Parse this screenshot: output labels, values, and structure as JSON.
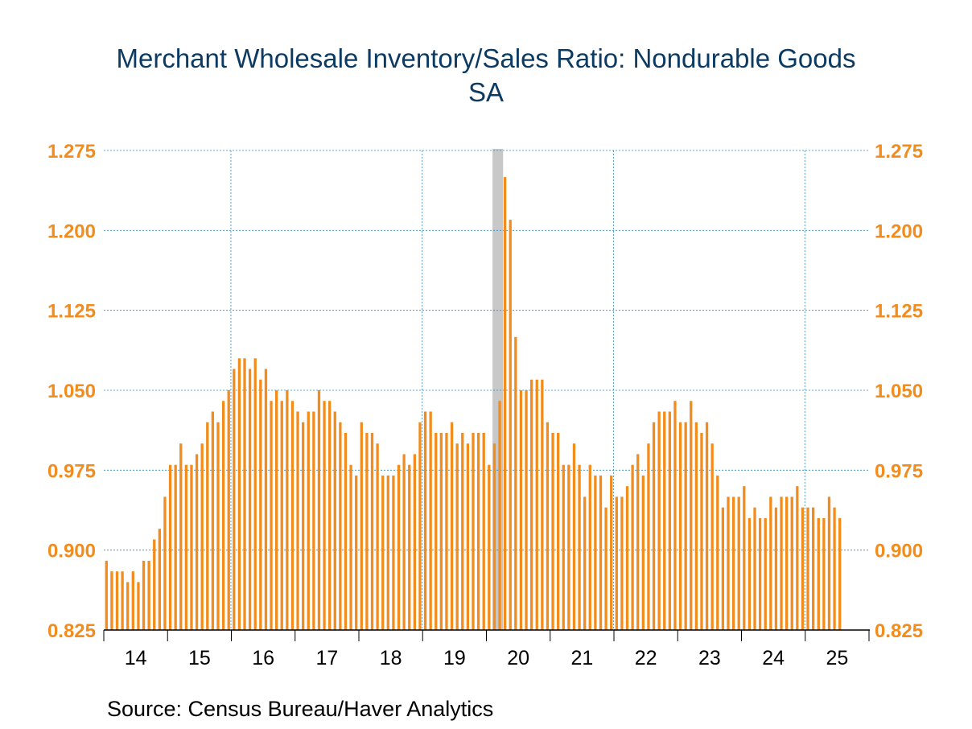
{
  "chart_data": {
    "type": "bar",
    "title": "Merchant Wholesale Inventory/Sales Ratio: Nondurable Goods",
    "subtitle": "SA",
    "source": "Source:  Census Bureau/Haver Analytics",
    "start": "2014-01",
    "ylim": [
      0.825,
      1.275
    ],
    "yticks": [
      "0.825",
      "0.900",
      "0.975",
      "1.050",
      "1.125",
      "1.200",
      "1.275"
    ],
    "x_labels": [
      "14",
      "15",
      "16",
      "17",
      "18",
      "19",
      "20",
      "21",
      "22",
      "23",
      "24",
      "25"
    ],
    "grid": true,
    "recession": {
      "start": "2020-02",
      "end": "2020-04"
    },
    "colors": {
      "bars": "#f28c1c",
      "grid": "#2e8bc9",
      "recession": "#c8c8c8",
      "title": "#0b3a63",
      "axis_text": "#f28c1c"
    },
    "values": [
      0.89,
      0.88,
      0.88,
      0.88,
      0.87,
      0.88,
      0.87,
      0.89,
      0.89,
      0.91,
      0.92,
      0.95,
      0.98,
      0.98,
      1.0,
      0.98,
      0.98,
      0.99,
      1.0,
      1.02,
      1.03,
      1.02,
      1.04,
      1.05,
      1.07,
      1.08,
      1.08,
      1.07,
      1.08,
      1.06,
      1.07,
      1.04,
      1.05,
      1.04,
      1.05,
      1.04,
      1.03,
      1.02,
      1.03,
      1.03,
      1.05,
      1.04,
      1.04,
      1.03,
      1.02,
      1.01,
      0.98,
      0.97,
      1.02,
      1.01,
      1.01,
      1.0,
      0.97,
      0.97,
      0.97,
      0.98,
      0.99,
      0.98,
      0.99,
      1.02,
      1.03,
      1.03,
      1.01,
      1.01,
      1.01,
      1.02,
      1.0,
      1.01,
      1.0,
      1.01,
      1.01,
      1.01,
      0.98,
      1.0,
      1.04,
      1.25,
      1.21,
      1.1,
      1.05,
      1.05,
      1.06,
      1.06,
      1.06,
      1.02,
      1.01,
      1.01,
      0.98,
      0.98,
      1.0,
      0.98,
      0.95,
      0.98,
      0.97,
      0.97,
      0.94,
      0.97,
      0.95,
      0.95,
      0.96,
      0.98,
      0.99,
      0.97,
      1.0,
      1.02,
      1.03,
      1.03,
      1.03,
      1.04,
      1.02,
      1.02,
      1.04,
      1.02,
      1.01,
      1.02,
      1.0,
      0.97,
      0.94,
      0.95,
      0.95,
      0.95,
      0.96,
      0.93,
      0.94,
      0.93,
      0.93,
      0.95,
      0.94,
      0.95,
      0.95,
      0.95,
      0.96,
      0.94,
      0.94,
      0.94,
      0.93,
      0.93,
      0.95,
      0.94,
      0.93
    ]
  }
}
